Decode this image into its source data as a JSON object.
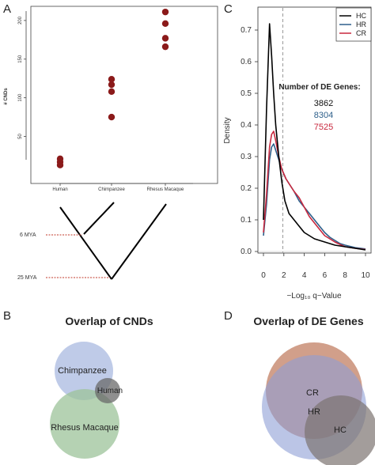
{
  "panels": {
    "A": "A",
    "B": "B",
    "C": "C",
    "D": "D"
  },
  "chart_data": [
    {
      "type": "scatter",
      "panel": "A",
      "ylabel": "# CNDs",
      "xlabel": "",
      "categories": [
        "Human",
        "Chimpanzee",
        "Rhesus Macaque"
      ],
      "yticks": [
        50,
        100,
        150,
        200
      ],
      "ylim": [
        0,
        220
      ],
      "points": [
        {
          "category": "Human",
          "y": 21
        },
        {
          "category": "Human",
          "y": 17
        },
        {
          "category": "Human",
          "y": 13
        },
        {
          "category": "Chimpanzee",
          "y": 124
        },
        {
          "category": "Chimpanzee",
          "y": 117
        },
        {
          "category": "Chimpanzee",
          "y": 108
        },
        {
          "category": "Chimpanzee",
          "y": 75
        },
        {
          "category": "Rhesus Macaque",
          "y": 211
        },
        {
          "category": "Rhesus Macaque",
          "y": 196
        },
        {
          "category": "Rhesus Macaque",
          "y": 177
        },
        {
          "category": "Rhesus Macaque",
          "y": 166
        }
      ],
      "point_color": "#8b1a1a",
      "grid": false
    },
    {
      "type": "diagram",
      "panel": "A-tree",
      "nodes": [
        {
          "label": "6 MYA",
          "divergence": 6
        },
        {
          "label": "25 MYA",
          "divergence": 25
        }
      ],
      "line_color": "#000000",
      "marker_color": "#c0392b"
    },
    {
      "type": "line",
      "panel": "C",
      "xlabel": "−Log₁₀ q−Value",
      "ylabel": "Density",
      "xlim": [
        -0.3,
        10.3
      ],
      "ylim": [
        0,
        0.75
      ],
      "xticks": [
        0,
        2,
        4,
        6,
        8,
        10
      ],
      "yticks": [
        0.0,
        0.1,
        0.2,
        0.3,
        0.4,
        0.5,
        0.6,
        0.7
      ],
      "vline": {
        "x": 1.9,
        "style": "dashed",
        "color": "#9a9a9a"
      },
      "legend_position": "top-right",
      "annotation": {
        "title": "Number of DE Genes:",
        "rows": [
          {
            "value": "3862",
            "color": "#111111"
          },
          {
            "value": "8304",
            "color": "#2d5f8a"
          },
          {
            "value": "7525",
            "color": "#c8283e"
          }
        ]
      },
      "series": [
        {
          "name": "HC",
          "color": "#000000",
          "x": [
            0,
            0.3,
            0.6,
            0.8,
            1.0,
            1.2,
            1.5,
            1.8,
            2.1,
            2.5,
            3.0,
            3.5,
            4.0,
            5.0,
            6.0,
            7.0,
            8.0,
            9.0,
            10.0
          ],
          "y": [
            0.1,
            0.45,
            0.72,
            0.62,
            0.5,
            0.4,
            0.3,
            0.22,
            0.16,
            0.12,
            0.1,
            0.08,
            0.06,
            0.04,
            0.03,
            0.02,
            0.015,
            0.01,
            0.005
          ]
        },
        {
          "name": "HR",
          "color": "#2d5f8a",
          "x": [
            0,
            0.3,
            0.6,
            0.8,
            1.0,
            1.2,
            1.5,
            1.8,
            2.2,
            2.6,
            3.0,
            3.5,
            4.0,
            4.5,
            5.0,
            5.5,
            6.0,
            6.5,
            7.0,
            7.5,
            8.0,
            9.0,
            10.0
          ],
          "y": [
            0.05,
            0.15,
            0.29,
            0.33,
            0.34,
            0.32,
            0.29,
            0.26,
            0.23,
            0.21,
            0.19,
            0.16,
            0.14,
            0.12,
            0.1,
            0.08,
            0.06,
            0.045,
            0.035,
            0.025,
            0.02,
            0.012,
            0.008
          ]
        },
        {
          "name": "CR",
          "color": "#c8283e",
          "x": [
            0,
            0.3,
            0.6,
            0.8,
            1.0,
            1.2,
            1.5,
            1.8,
            2.2,
            2.6,
            3.0,
            3.5,
            4.0,
            4.5,
            5.0,
            5.5,
            6.0,
            6.5,
            7.0,
            7.5,
            8.0,
            9.0,
            10.0
          ],
          "y": [
            0.06,
            0.18,
            0.33,
            0.37,
            0.38,
            0.35,
            0.3,
            0.26,
            0.23,
            0.21,
            0.19,
            0.17,
            0.14,
            0.11,
            0.09,
            0.07,
            0.05,
            0.04,
            0.03,
            0.022,
            0.015,
            0.01,
            0.006
          ]
        }
      ]
    },
    {
      "type": "venn",
      "panel": "B",
      "title": "Overlap of CNDs",
      "sets": [
        {
          "label": "Chimpanzee",
          "color": "#a9b9e0"
        },
        {
          "label": "Human",
          "color": "#6a6a6a"
        },
        {
          "label": "Rhesus Macaque",
          "color": "#9cc39a"
        }
      ]
    },
    {
      "type": "venn",
      "panel": "D",
      "title": "Overlap of DE Genes",
      "sets": [
        {
          "label": "CR",
          "color": "#c98e76"
        },
        {
          "label": "HR",
          "color": "#8e9fd6"
        },
        {
          "label": "HC",
          "color": "#7c7371"
        }
      ]
    }
  ]
}
